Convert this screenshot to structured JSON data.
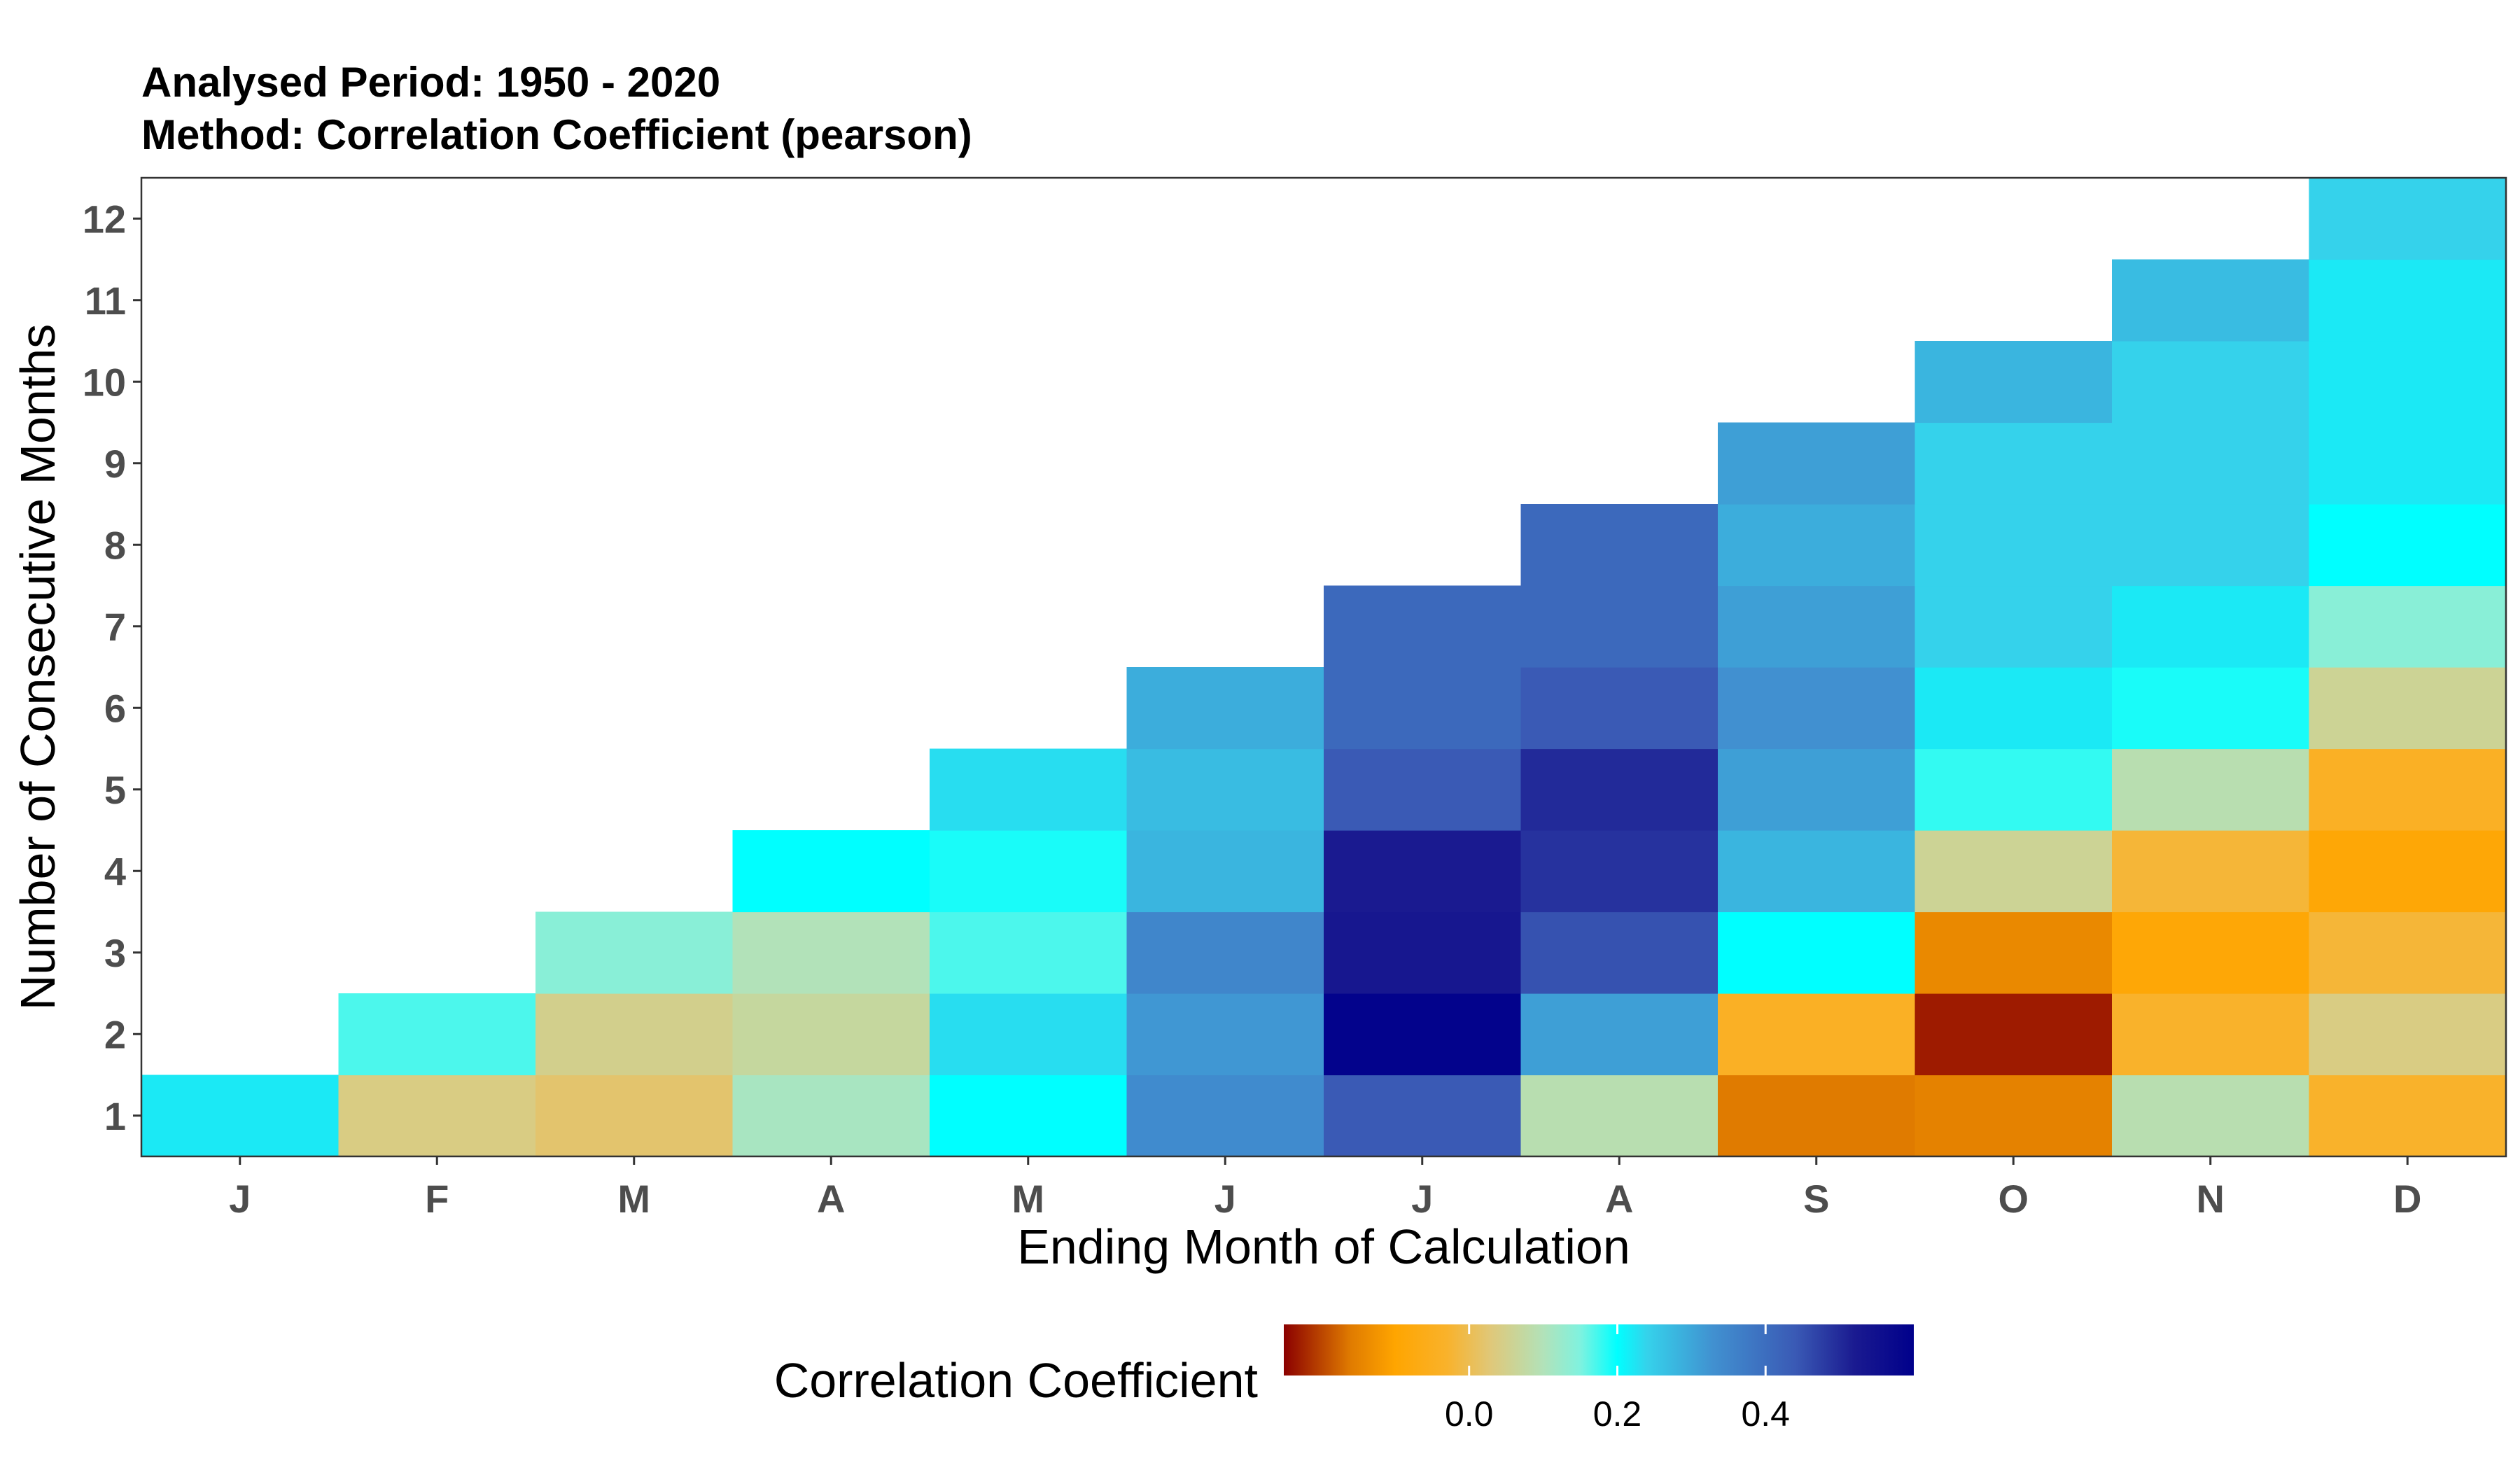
{
  "chart_data": {
    "type": "heatmap",
    "title_lines": [
      "Analysed Period: 1950 - 2020",
      "Method: Correlation Coefficient (pearson)"
    ],
    "xlabel": "Ending Month of Calculation",
    "ylabel": "Number of Consecutive Months",
    "x_categories": [
      "J",
      "F",
      "M",
      "A",
      "M",
      "J",
      "J",
      "A",
      "S",
      "O",
      "N",
      "D"
    ],
    "y_categories": [
      "1",
      "2",
      "3",
      "4",
      "5",
      "6",
      "7",
      "8",
      "9",
      "10",
      "11",
      "12"
    ],
    "cells": [
      {
        "x": 0,
        "y": 1,
        "value": 0.22
      },
      {
        "x": 1,
        "y": 1,
        "value": 0.04
      },
      {
        "x": 1,
        "y": 2,
        "value": 0.17
      },
      {
        "x": 2,
        "y": 1,
        "value": 0.02
      },
      {
        "x": 2,
        "y": 2,
        "value": 0.05
      },
      {
        "x": 2,
        "y": 3,
        "value": 0.14
      },
      {
        "x": 3,
        "y": 1,
        "value": 0.11
      },
      {
        "x": 3,
        "y": 2,
        "value": 0.07
      },
      {
        "x": 3,
        "y": 3,
        "value": 0.1
      },
      {
        "x": 3,
        "y": 4,
        "value": 0.2
      },
      {
        "x": 4,
        "y": 1,
        "value": 0.2
      },
      {
        "x": 4,
        "y": 2,
        "value": 0.23
      },
      {
        "x": 4,
        "y": 3,
        "value": 0.17
      },
      {
        "x": 4,
        "y": 4,
        "value": 0.19
      },
      {
        "x": 4,
        "y": 5,
        "value": 0.23
      },
      {
        "x": 5,
        "y": 1,
        "value": 0.34
      },
      {
        "x": 5,
        "y": 2,
        "value": 0.32
      },
      {
        "x": 5,
        "y": 3,
        "value": 0.35
      },
      {
        "x": 5,
        "y": 4,
        "value": 0.28
      },
      {
        "x": 5,
        "y": 5,
        "value": 0.27
      },
      {
        "x": 5,
        "y": 6,
        "value": 0.29
      },
      {
        "x": 6,
        "y": 1,
        "value": 0.44
      },
      {
        "x": 6,
        "y": 2,
        "value": 0.59
      },
      {
        "x": 6,
        "y": 3,
        "value": 0.53
      },
      {
        "x": 6,
        "y": 4,
        "value": 0.52
      },
      {
        "x": 6,
        "y": 5,
        "value": 0.44
      },
      {
        "x": 6,
        "y": 6,
        "value": 0.41
      },
      {
        "x": 6,
        "y": 7,
        "value": 0.41
      },
      {
        "x": 7,
        "y": 1,
        "value": 0.09
      },
      {
        "x": 7,
        "y": 2,
        "value": 0.31
      },
      {
        "x": 7,
        "y": 3,
        "value": 0.45
      },
      {
        "x": 7,
        "y": 4,
        "value": 0.49
      },
      {
        "x": 7,
        "y": 5,
        "value": 0.5
      },
      {
        "x": 7,
        "y": 6,
        "value": 0.44
      },
      {
        "x": 7,
        "y": 7,
        "value": 0.41
      },
      {
        "x": 7,
        "y": 8,
        "value": 0.41
      },
      {
        "x": 8,
        "y": 1,
        "value": -0.16
      },
      {
        "x": 8,
        "y": 2,
        "value": -0.04
      },
      {
        "x": 8,
        "y": 3,
        "value": 0.2
      },
      {
        "x": 8,
        "y": 4,
        "value": 0.28
      },
      {
        "x": 8,
        "y": 5,
        "value": 0.31
      },
      {
        "x": 8,
        "y": 6,
        "value": 0.33
      },
      {
        "x": 8,
        "y": 7,
        "value": 0.31
      },
      {
        "x": 8,
        "y": 8,
        "value": 0.29
      },
      {
        "x": 8,
        "y": 9,
        "value": 0.31
      },
      {
        "x": 9,
        "y": 1,
        "value": -0.15
      },
      {
        "x": 9,
        "y": 2,
        "value": -0.23
      },
      {
        "x": 9,
        "y": 3,
        "value": -0.14
      },
      {
        "x": 9,
        "y": 4,
        "value": 0.06
      },
      {
        "x": 9,
        "y": 5,
        "value": 0.18
      },
      {
        "x": 9,
        "y": 6,
        "value": 0.22
      },
      {
        "x": 9,
        "y": 7,
        "value": 0.24
      },
      {
        "x": 9,
        "y": 8,
        "value": 0.24
      },
      {
        "x": 9,
        "y": 9,
        "value": 0.24
      },
      {
        "x": 9,
        "y": 10,
        "value": 0.28
      },
      {
        "x": 10,
        "y": 1,
        "value": 0.09
      },
      {
        "x": 10,
        "y": 2,
        "value": -0.03
      },
      {
        "x": 10,
        "y": 3,
        "value": -0.09
      },
      {
        "x": 10,
        "y": 4,
        "value": -0.02
      },
      {
        "x": 10,
        "y": 5,
        "value": 0.09
      },
      {
        "x": 10,
        "y": 6,
        "value": 0.19
      },
      {
        "x": 10,
        "y": 7,
        "value": 0.22
      },
      {
        "x": 10,
        "y": 8,
        "value": 0.24
      },
      {
        "x": 10,
        "y": 9,
        "value": 0.24
      },
      {
        "x": 10,
        "y": 10,
        "value": 0.24
      },
      {
        "x": 10,
        "y": 11,
        "value": 0.27
      },
      {
        "x": 11,
        "y": 1,
        "value": -0.03
      },
      {
        "x": 11,
        "y": 2,
        "value": 0.04
      },
      {
        "x": 11,
        "y": 3,
        "value": -0.02
      },
      {
        "x": 11,
        "y": 4,
        "value": -0.09
      },
      {
        "x": 11,
        "y": 5,
        "value": -0.04
      },
      {
        "x": 11,
        "y": 6,
        "value": 0.06
      },
      {
        "x": 11,
        "y": 7,
        "value": 0.14
      },
      {
        "x": 11,
        "y": 8,
        "value": 0.2
      },
      {
        "x": 11,
        "y": 9,
        "value": 0.22
      },
      {
        "x": 11,
        "y": 10,
        "value": 0.22
      },
      {
        "x": 11,
        "y": 11,
        "value": 0.22
      },
      {
        "x": 11,
        "y": 12,
        "value": 0.24
      }
    ],
    "colorbar": {
      "title": "Correlation Coefficient",
      "range": [
        -0.25,
        0.6
      ],
      "ticks": [
        0.0,
        0.2,
        0.4
      ],
      "tick_labels": [
        "0.0",
        "0.2",
        "0.4"
      ],
      "stops": [
        {
          "value": -0.25,
          "color": "#8b0000"
        },
        {
          "value": -0.16,
          "color": "#e07b00"
        },
        {
          "value": -0.1,
          "color": "#ffa500"
        },
        {
          "value": -0.03,
          "color": "#f9b22b"
        },
        {
          "value": 0.03,
          "color": "#dfc87a"
        },
        {
          "value": 0.1,
          "color": "#b2e2b9"
        },
        {
          "value": 0.15,
          "color": "#7ff2df"
        },
        {
          "value": 0.2,
          "color": "#00ffff"
        },
        {
          "value": 0.24,
          "color": "#35d2eb"
        },
        {
          "value": 0.33,
          "color": "#4190d0"
        },
        {
          "value": 0.44,
          "color": "#3a5ab5"
        },
        {
          "value": 0.52,
          "color": "#1a1a90"
        },
        {
          "value": 0.6,
          "color": "#00008b"
        }
      ]
    },
    "grid": false,
    "legend_position": "bottom"
  }
}
